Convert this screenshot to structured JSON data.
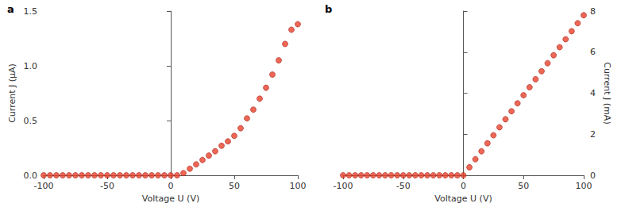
{
  "chart_data": [
    {
      "type": "scatter",
      "title": "a",
      "x_label": "Voltage U (V)",
      "y_label": "Current J (μA)",
      "x": [
        -100,
        -95,
        -90,
        -85,
        -80,
        -75,
        -70,
        -65,
        -60,
        -55,
        -50,
        -45,
        -40,
        -35,
        -30,
        -25,
        -20,
        -15,
        -10,
        -5,
        0,
        5,
        10,
        15,
        20,
        25,
        30,
        35,
        40,
        45,
        50,
        55,
        60,
        65,
        70,
        75,
        80,
        85,
        90,
        95,
        100
      ],
      "values": [
        0,
        0,
        0,
        0,
        0,
        0,
        0,
        0,
        0,
        0,
        0,
        0,
        0,
        0,
        0,
        0,
        0,
        0,
        0,
        0,
        0,
        0.0,
        0.02,
        0.06,
        0.1,
        0.14,
        0.18,
        0.22,
        0.27,
        0.31,
        0.36,
        0.43,
        0.52,
        0.6,
        0.7,
        0.8,
        0.92,
        1.05,
        1.2,
        1.33,
        1.38
      ],
      "color": "#e8412c",
      "marker": "circle",
      "xlim": [
        -100,
        100
      ],
      "xticks": [
        -100,
        -50,
        0,
        50,
        100
      ],
      "ylim": [
        0,
        1.5
      ],
      "yticks": [
        {
          "value": 0,
          "label": "0.0"
        },
        {
          "value": 0.5,
          "label": "0.5"
        },
        {
          "value": 1,
          "label": "1.0"
        },
        {
          "value": 1.5,
          "label": "1.5"
        }
      ],
      "grid": false
    },
    {
      "type": "scatter",
      "title": "b",
      "x_label": "Voltage U (V)",
      "y_label": "Current J (mA)",
      "x": [
        -100,
        -95,
        -90,
        -85,
        -80,
        -75,
        -70,
        -65,
        -60,
        -55,
        -50,
        -45,
        -40,
        -35,
        -30,
        -25,
        -20,
        -15,
        -10,
        -5,
        0,
        5,
        10,
        15,
        20,
        25,
        30,
        35,
        40,
        45,
        50,
        55,
        60,
        65,
        70,
        75,
        80,
        85,
        90,
        95,
        100
      ],
      "values": [
        0,
        0,
        0,
        0,
        0,
        0,
        0,
        0,
        0,
        0,
        0,
        0,
        0,
        0,
        0,
        0,
        0,
        0,
        0,
        0,
        0,
        0.39,
        0.78,
        1.17,
        1.56,
        1.95,
        2.34,
        2.73,
        3.12,
        3.51,
        3.9,
        4.29,
        4.68,
        5.07,
        5.46,
        5.85,
        6.24,
        6.63,
        7.02,
        7.41,
        7.8
      ],
      "color": "#e8412c",
      "marker": "circle",
      "xlim": [
        -100,
        100
      ],
      "xticks": [
        -100,
        -50,
        0,
        50,
        100
      ],
      "ylim": [
        0,
        8
      ],
      "yticks": [
        0,
        2,
        4,
        6,
        8
      ],
      "grid": false
    }
  ]
}
